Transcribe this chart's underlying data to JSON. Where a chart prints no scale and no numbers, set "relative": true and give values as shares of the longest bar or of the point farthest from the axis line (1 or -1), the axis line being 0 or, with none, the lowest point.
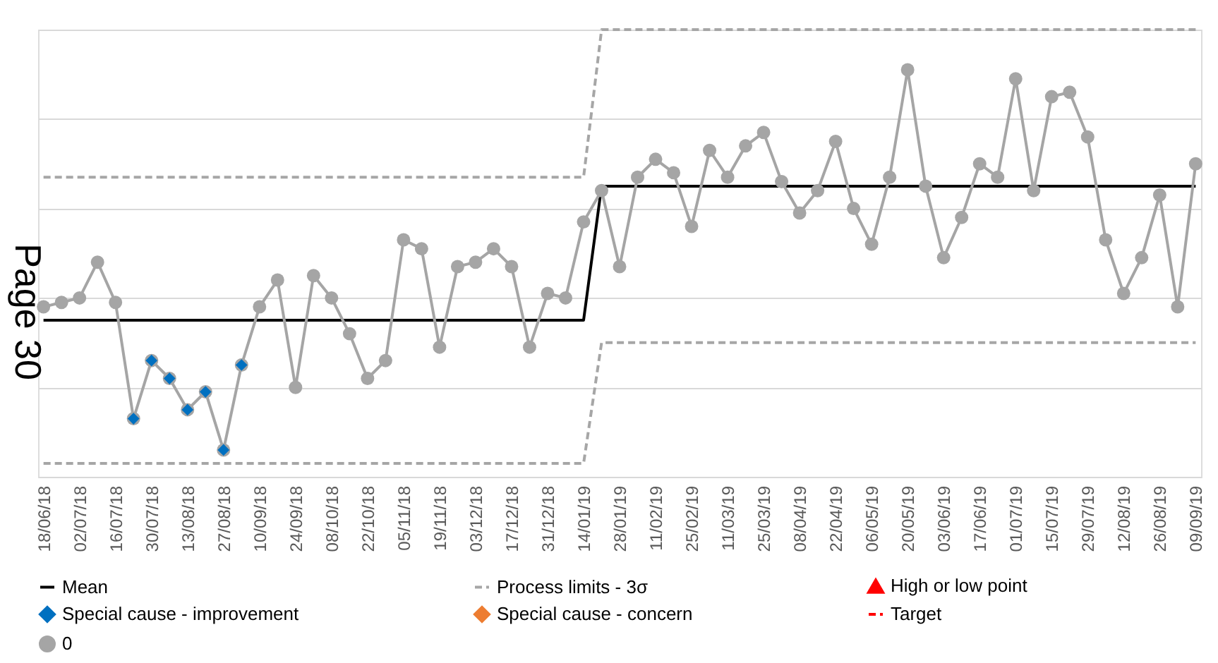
{
  "chart_data": {
    "type": "line",
    "relative": true,
    "grid": "y",
    "legend": "bottom",
    "categories": [
      "18/06/18",
      null,
      "02/07/18",
      null,
      "16/07/18",
      null,
      "30/07/18",
      null,
      "13/08/18",
      null,
      "27/08/18",
      null,
      "10/09/18",
      null,
      "24/09/18",
      null,
      "08/10/18",
      null,
      "22/10/18",
      null,
      "05/11/18",
      null,
      "19/11/18",
      null,
      "03/12/18",
      null,
      "17/12/18",
      null,
      "31/12/18",
      null,
      "14/01/19",
      null,
      "28/01/19",
      null,
      "11/02/19",
      null,
      "25/02/19",
      null,
      "11/03/19",
      null,
      "25/03/19",
      null,
      "08/04/19",
      null,
      "22/04/19",
      null,
      "06/05/19",
      null,
      "20/05/19",
      null,
      "03/06/19",
      null,
      "17/06/19",
      null,
      "01/07/19",
      null,
      "15/07/19",
      null,
      "29/07/19",
      null,
      "12/08/19",
      null,
      "26/08/19",
      null,
      "09/09/19"
    ],
    "series": [
      {
        "name": "Mean",
        "color": "#000000",
        "marker": "none",
        "line_style": "solid",
        "values": [
          0.35,
          0.35,
          0.35,
          0.35,
          0.35,
          0.35,
          0.35,
          0.35,
          0.35,
          0.35,
          0.35,
          0.35,
          0.35,
          0.35,
          0.35,
          0.35,
          0.35,
          0.35,
          0.35,
          0.35,
          0.35,
          0.35,
          0.35,
          0.35,
          0.35,
          0.35,
          0.35,
          0.35,
          0.35,
          0.35,
          0.35,
          0.65,
          0.65,
          0.65,
          0.65,
          0.65,
          0.65,
          0.65,
          0.65,
          0.65,
          0.65,
          0.65,
          0.65,
          0.65,
          0.65,
          0.65,
          0.65,
          0.65,
          0.65,
          0.65,
          0.65,
          0.65,
          0.65,
          0.65,
          0.65,
          0.65,
          0.65,
          0.65,
          0.65,
          0.65,
          0.65,
          0.65,
          0.65,
          0.65,
          0.65
        ]
      },
      {
        "name": "Process limits - 3σ",
        "color": "#a6a6a6",
        "marker": "none",
        "line_style": "dashed",
        "values": [
          0.67,
          0.67,
          0.67,
          0.67,
          0.67,
          0.67,
          0.67,
          0.67,
          0.67,
          0.67,
          0.67,
          0.67,
          0.67,
          0.67,
          0.67,
          0.67,
          0.67,
          0.67,
          0.67,
          0.67,
          0.67,
          0.67,
          0.67,
          0.67,
          0.67,
          0.67,
          0.67,
          0.67,
          0.67,
          0.67,
          0.67,
          1,
          1,
          1,
          1,
          1,
          1,
          1,
          1,
          1,
          1,
          1,
          1,
          1,
          1,
          1,
          1,
          1,
          1,
          1,
          1,
          1,
          1,
          1,
          1,
          1,
          1,
          1,
          1,
          1,
          1,
          1,
          1,
          1,
          1
        ]
      },
      {
        "color": "#a6a6a6",
        "marker": "none",
        "line_style": "dashed",
        "values": [
          0.03,
          0.03,
          0.03,
          0.03,
          0.03,
          0.03,
          0.03,
          0.03,
          0.03,
          0.03,
          0.03,
          0.03,
          0.03,
          0.03,
          0.03,
          0.03,
          0.03,
          0.03,
          0.03,
          0.03,
          0.03,
          0.03,
          0.03,
          0.03,
          0.03,
          0.03,
          0.03,
          0.03,
          0.03,
          0.03,
          0.03,
          0.3,
          0.3,
          0.3,
          0.3,
          0.3,
          0.3,
          0.3,
          0.3,
          0.3,
          0.3,
          0.3,
          0.3,
          0.3,
          0.3,
          0.3,
          0.3,
          0.3,
          0.3,
          0.3,
          0.3,
          0.3,
          0.3,
          0.3,
          0.3,
          0.3,
          0.3,
          0.3,
          0.3,
          0.3,
          0.3,
          0.3,
          0.3,
          0.3,
          0.3
        ]
      },
      {
        "name": "High or low point",
        "type": "scatter",
        "color": "#ff0000",
        "marker": "triangle",
        "values": [
          null,
          null,
          null,
          null,
          null,
          null,
          null,
          null,
          null,
          null,
          null,
          null,
          null,
          null,
          null,
          null,
          null,
          null,
          null,
          null,
          null,
          null,
          null,
          null,
          null,
          null,
          null,
          null,
          null,
          null,
          null,
          null,
          null,
          null,
          null,
          null,
          null,
          null,
          null,
          null,
          null,
          null,
          null,
          null,
          null,
          null,
          null,
          null,
          null,
          null,
          null,
          null,
          null,
          null,
          null,
          null,
          null,
          null,
          null,
          null,
          null,
          null,
          null,
          null,
          null
        ]
      },
      {
        "name": "Special cause - improvement",
        "type": "scatter",
        "color": "#0070c0",
        "marker": "diamond",
        "values": [
          null,
          null,
          null,
          null,
          null,
          0.13,
          0.26,
          0.22,
          0.15,
          0.19,
          0.06,
          0.25,
          null,
          null,
          null,
          null,
          null,
          null,
          null,
          null,
          null,
          null,
          null,
          null,
          null,
          null,
          null,
          null,
          null,
          null,
          null,
          null,
          null,
          null,
          null,
          null,
          null,
          null,
          null,
          null,
          null,
          null,
          null,
          null,
          null,
          null,
          null,
          null,
          null,
          null,
          null,
          null,
          null,
          null,
          null,
          null,
          null,
          null,
          null,
          null,
          null,
          null,
          null,
          null,
          null
        ]
      },
      {
        "name": "Special cause - concern",
        "type": "scatter",
        "color": "#ed7d31",
        "marker": "diamond",
        "values": [
          null,
          null,
          null,
          null,
          null,
          null,
          null,
          null,
          null,
          null,
          null,
          null,
          null,
          null,
          null,
          null,
          null,
          null,
          null,
          null,
          null,
          null,
          null,
          null,
          null,
          null,
          null,
          null,
          null,
          null,
          null,
          null,
          null,
          null,
          null,
          null,
          null,
          null,
          null,
          null,
          null,
          null,
          null,
          null,
          null,
          null,
          null,
          null,
          null,
          null,
          null,
          null,
          null,
          null,
          null,
          null,
          null,
          null,
          null,
          null,
          null,
          null,
          null,
          null,
          null
        ]
      },
      {
        "name": "Target",
        "color": "#ff0000",
        "marker": "none",
        "line_style": "dashed",
        "values": [
          null,
          null,
          null,
          null,
          null,
          null,
          null,
          null,
          null,
          null,
          null,
          null,
          null,
          null,
          null,
          null,
          null,
          null,
          null,
          null,
          null,
          null,
          null,
          null,
          null,
          null,
          null,
          null,
          null,
          null,
          null,
          null,
          null,
          null,
          null,
          null,
          null,
          null,
          null,
          null,
          null,
          null,
          null,
          null,
          null,
          null,
          null,
          null,
          null,
          null,
          null,
          null,
          null,
          null,
          null,
          null,
          null,
          null,
          null,
          null,
          null,
          null,
          null,
          null,
          null
        ]
      },
      {
        "name": "0",
        "color": "#a5a5a5",
        "marker": "circle",
        "line_style": "solid",
        "values": [
          0.38,
          0.39,
          0.4,
          0.48,
          0.39,
          0.13,
          0.26,
          0.22,
          0.15,
          0.19,
          0.06,
          0.25,
          0.38,
          0.44,
          0.2,
          0.45,
          0.4,
          0.32,
          0.22,
          0.26,
          0.53,
          0.51,
          0.29,
          0.47,
          0.48,
          0.51,
          0.47,
          0.29,
          0.41,
          0.4,
          0.57,
          0.64,
          0.47,
          0.67,
          0.71,
          0.68,
          0.56,
          0.73,
          0.67,
          0.74,
          0.77,
          0.66,
          0.59,
          0.64,
          0.75,
          0.6,
          0.52,
          0.67,
          0.91,
          0.65,
          0.49,
          0.58,
          0.7,
          0.67,
          0.89,
          0.64,
          0.85,
          0.86,
          0.76,
          0.53,
          0.41,
          0.49,
          0.63,
          0.38,
          0.7
        ]
      }
    ],
    "annotations": [
      "Page 30"
    ]
  }
}
